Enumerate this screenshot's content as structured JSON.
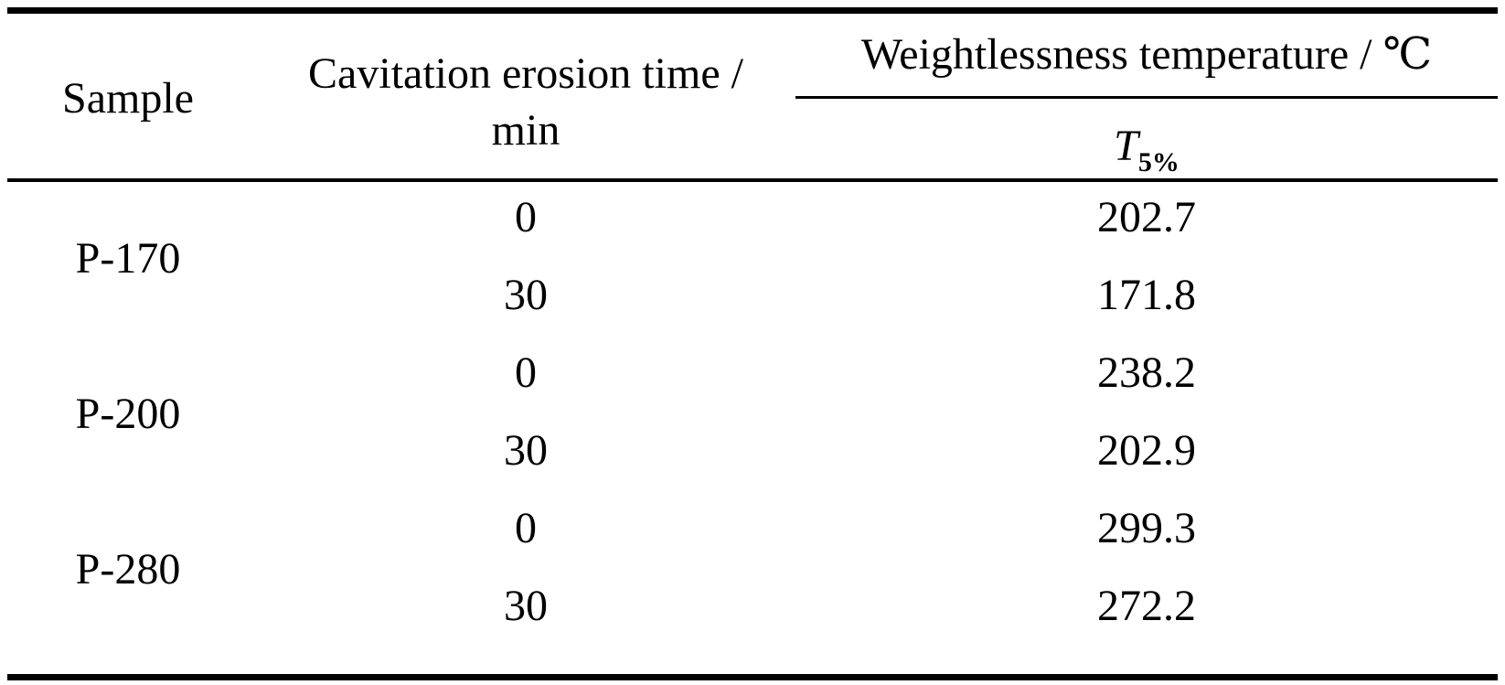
{
  "table": {
    "headers": {
      "sample": "Sample",
      "time_line1": "Cavitation erosion time /",
      "time_line2": "min",
      "weight_group": "Weightlessness temperature /  ℃",
      "t_symbol": "T",
      "t_subscript": "5%"
    },
    "groups": [
      {
        "sample": "P-170",
        "rows": [
          {
            "time": "0",
            "temp": "202.7"
          },
          {
            "time": "30",
            "temp": "171.8"
          }
        ]
      },
      {
        "sample": "P-200",
        "rows": [
          {
            "time": "0",
            "temp": "238.2"
          },
          {
            "time": "30",
            "temp": "202.9"
          }
        ]
      },
      {
        "sample": "P-280",
        "rows": [
          {
            "time": "0",
            "temp": "299.3"
          },
          {
            "time": "30",
            "temp": "272.2"
          }
        ]
      }
    ]
  }
}
